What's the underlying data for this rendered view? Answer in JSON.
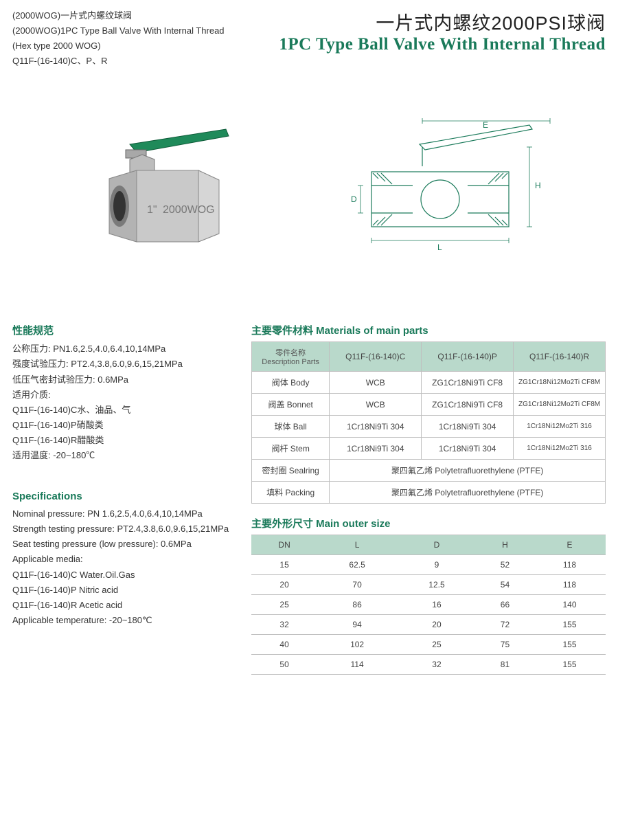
{
  "accent_color": "#1a7a5a",
  "header": {
    "left_lines": [
      "(2000WOG)一片式内螺纹球阀",
      "(2000WOG)1PC Type Ball Valve With Internal Thread",
      "(Hex type 2000 WOG)",
      "Q11F-(16-140)C、P、R"
    ],
    "title_cn": "一片式内螺纹2000PSI球阀",
    "title_en": "1PC Type Ball Valve With Internal Thread"
  },
  "product_label": {
    "size": "1\"",
    "marking": "2000WOG"
  },
  "drawing_labels": {
    "E": "E",
    "H": "H",
    "D": "D",
    "L": "L"
  },
  "specs_cn": {
    "title": "性能规范",
    "lines": [
      "公称压力: PN1.6,2.5,4.0,6.4,10,14MPa",
      "强度试验压力: PT2.4,3.8,6.0,9.6,15,21MPa",
      "低压气密封试验压力: 0.6MPa",
      "适用介质:",
      "Q11F-(16-140)C水、油品、气",
      "Q11F-(16-140)P硝酸类",
      "Q11F-(16-140)R醋酸类",
      "适用温度: -20~180℃"
    ]
  },
  "specs_en": {
    "title": "Specifications",
    "lines": [
      "Nominal pressure: PN 1.6,2.5,4.0,6.4,10,14MPa",
      "Strength testing pressure: PT2.4,3.8,6.0,9.6,15,21MPa",
      "Seat testing pressure (low pressure): 0.6MPa",
      "Applicable media:",
      "Q11F-(16-140)C Water.Oil.Gas",
      "Q11F-(16-140)P Nitric acid",
      "Q11F-(16-140)R Acetic acid",
      "Applicable temperature: -20~180℃"
    ]
  },
  "materials": {
    "title": "主要零件材料 Materials of main parts",
    "header": [
      "零件名称",
      "Description Parts",
      "Q11F-(16-140)C",
      "Q11F-(16-140)P",
      "Q11F-(16-140)R"
    ],
    "rows": [
      {
        "part": "阀体 Body",
        "c": "WCB",
        "p": "ZG1Cr18Ni9Ti CF8",
        "r": "ZG1Cr18Ni12Mo2Ti CF8M"
      },
      {
        "part": "阀盖 Bonnet",
        "c": "WCB",
        "p": "ZG1Cr18Ni9Ti CF8",
        "r": "ZG1Cr18Ni12Mo2Ti CF8M"
      },
      {
        "part": "球体 Ball",
        "c": "1Cr18Ni9Ti 304",
        "p": "1Cr18Ni9Ti 304",
        "r": "1Cr18Ni12Mo2Ti 316"
      },
      {
        "part": "阀杆 Stem",
        "c": "1Cr18Ni9Ti 304",
        "p": "1Cr18Ni9Ti 304",
        "r": "1Cr18Ni12Mo2Ti 316"
      }
    ],
    "merged": [
      {
        "part": "密封圈 Sealring",
        "value": "聚四氟乙烯 Polytetrafluorethylene (PTFE)"
      },
      {
        "part": "填料 Packing",
        "value": "聚四氟乙烯 Polytetrafluorethylene (PTFE)"
      }
    ]
  },
  "sizes": {
    "title": "主要外形尺寸 Main outer size",
    "columns": [
      "DN",
      "L",
      "D",
      "H",
      "E"
    ],
    "rows": [
      [
        "15",
        "62.5",
        "9",
        "52",
        "118"
      ],
      [
        "20",
        "70",
        "12.5",
        "54",
        "118"
      ],
      [
        "25",
        "86",
        "16",
        "66",
        "140"
      ],
      [
        "32",
        "94",
        "20",
        "72",
        "155"
      ],
      [
        "40",
        "102",
        "25",
        "75",
        "155"
      ],
      [
        "50",
        "114",
        "32",
        "81",
        "155"
      ]
    ]
  }
}
